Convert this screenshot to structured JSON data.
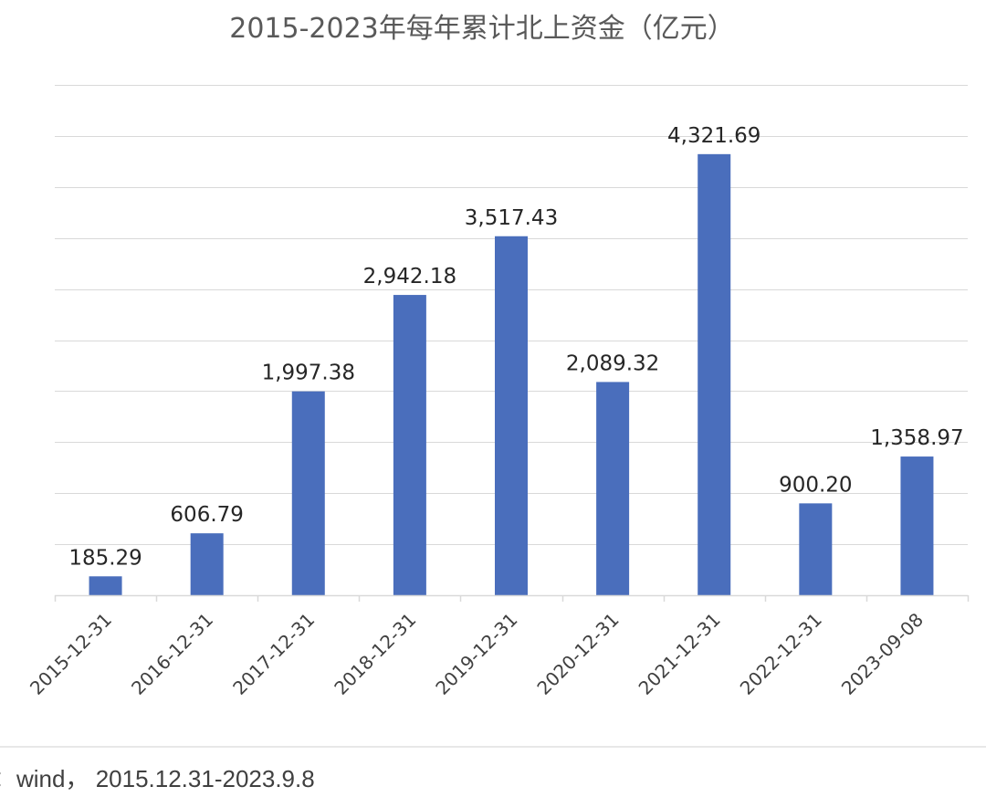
{
  "chart_data": {
    "type": "bar",
    "title": "2015-2023年每年累计北上资金（亿元）",
    "categories": [
      "2015-12-31",
      "2016-12-31",
      "2017-12-31",
      "2018-12-31",
      "2019-12-31",
      "2020-12-31",
      "2021-12-31",
      "2022-12-31",
      "2023-09-08"
    ],
    "values": [
      185.29,
      606.79,
      1997.38,
      2942.18,
      3517.43,
      2089.32,
      4321.69,
      900.2,
      1358.97
    ],
    "value_labels": [
      "185.29",
      "606.79",
      "1,997.38",
      "2,942.18",
      "3,517.43",
      "2,089.32",
      "4,321.69",
      "900.20",
      "1,358.97"
    ],
    "xlabel": "",
    "ylabel": "",
    "ylim": [
      0,
      5000
    ],
    "y_axis_labels_visible": false,
    "grid": true,
    "legend": "none",
    "bar_color": "#4a6ebc"
  },
  "footer": {
    "source_text": "：wind，  2015.12.31-2023.9.8"
  }
}
